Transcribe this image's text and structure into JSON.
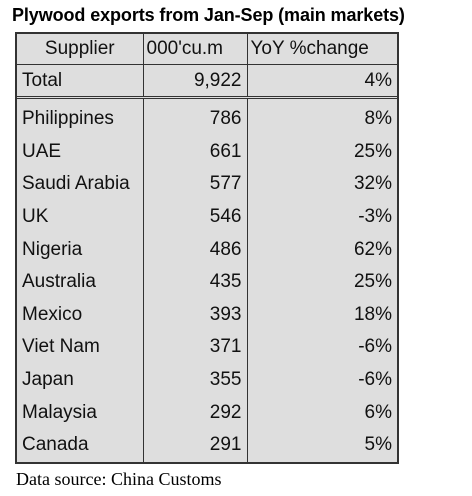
{
  "title": "Plywood exports from Jan-Sep (main markets)",
  "source": "Data source: China Customs",
  "chart_data": {
    "type": "table",
    "columns": [
      "Supplier",
      "000'cu.m",
      "YoY %change"
    ],
    "total": {
      "supplier": "Total",
      "volume": "9,922",
      "yoy": "4%"
    },
    "rows": [
      {
        "supplier": "Philippines",
        "volume": "786",
        "yoy": "8%"
      },
      {
        "supplier": "UAE",
        "volume": "661",
        "yoy": "25%"
      },
      {
        "supplier": "Saudi Arabia",
        "volume": "577",
        "yoy": "32%"
      },
      {
        "supplier": "UK",
        "volume": "546",
        "yoy": "-3%"
      },
      {
        "supplier": "Nigeria",
        "volume": "486",
        "yoy": "62%"
      },
      {
        "supplier": "Australia",
        "volume": "435",
        "yoy": "25%"
      },
      {
        "supplier": "Mexico",
        "volume": "393",
        "yoy": "18%"
      },
      {
        "supplier": "Viet Nam",
        "volume": "371",
        "yoy": "-6%"
      },
      {
        "supplier": "Japan",
        "volume": "355",
        "yoy": "-6%"
      },
      {
        "supplier": "Malaysia",
        "volume": "292",
        "yoy": "6%"
      },
      {
        "supplier": "Canada",
        "volume": "291",
        "yoy": "5%"
      }
    ]
  }
}
